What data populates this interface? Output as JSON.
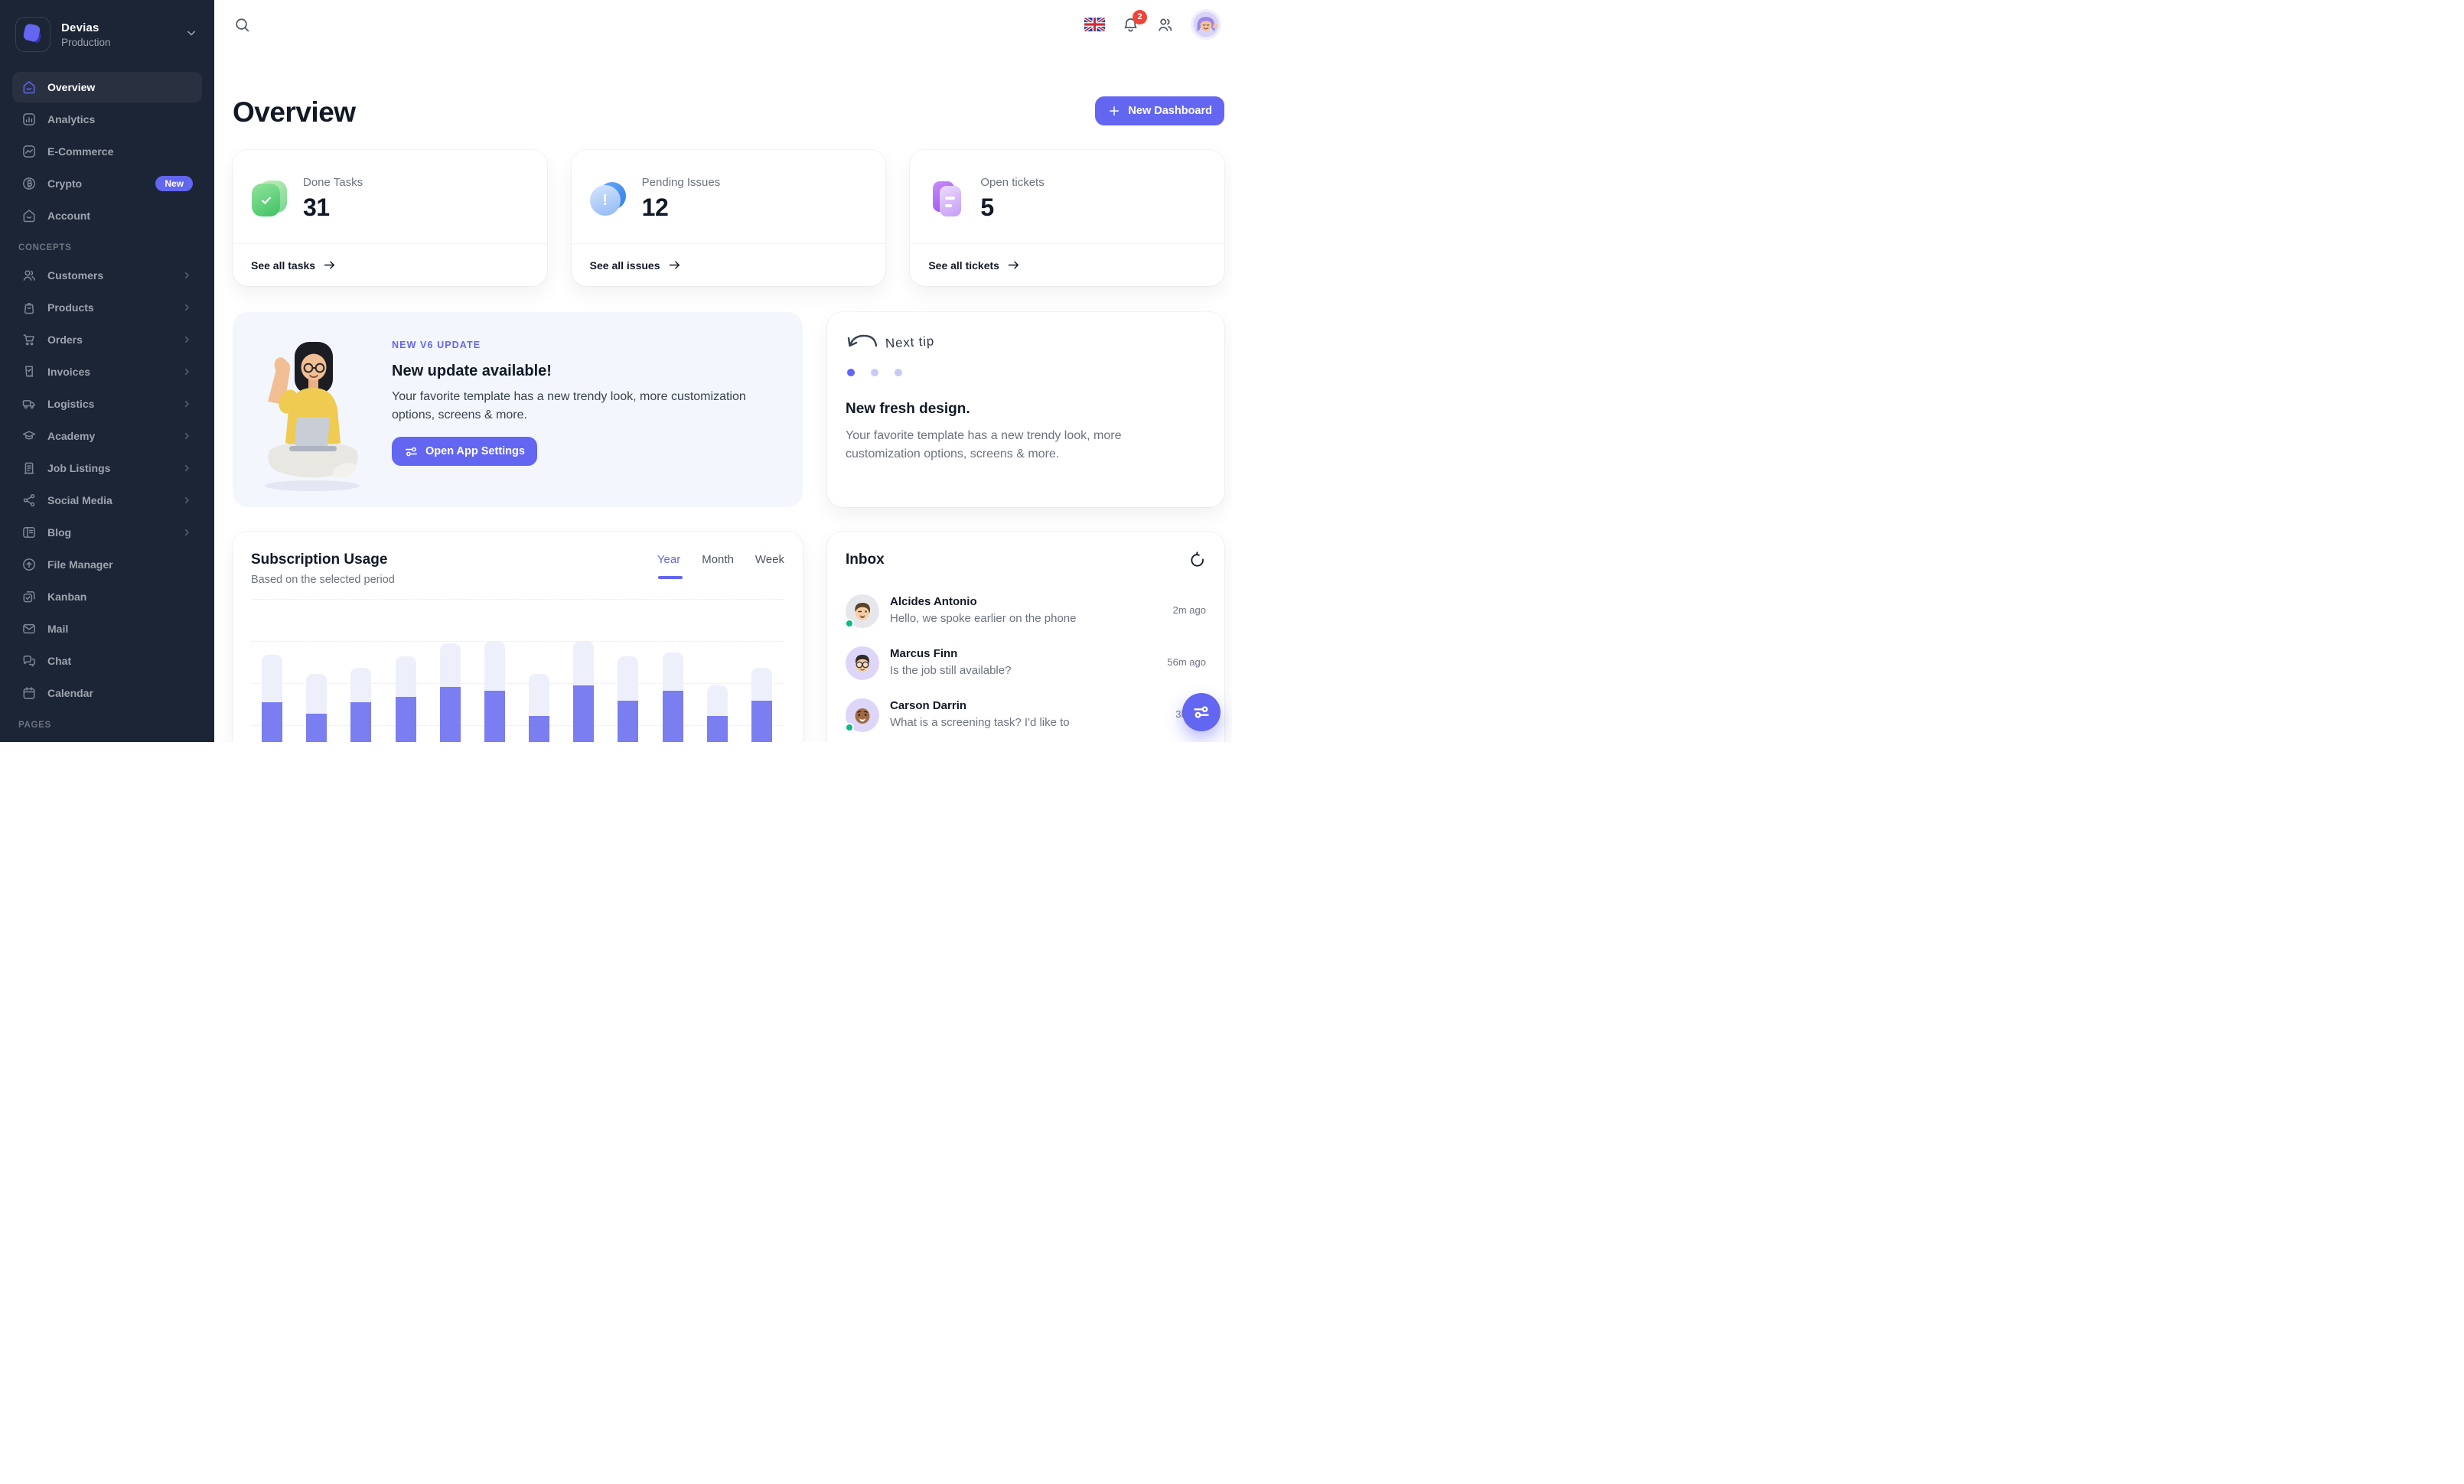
{
  "theme": {
    "primary": "#6366F1",
    "sidebar_bg": "#1C2536",
    "banner_bg": "#F3F6FD",
    "bar_fill": "#7A7EF0",
    "bar_track": "#EDF0FB",
    "notification_red": "#F04438",
    "online_green": "#10B981"
  },
  "sidebar": {
    "workspace": {
      "title": "Devias",
      "subtitle": "Production"
    },
    "main_items": [
      {
        "label": "Overview"
      },
      {
        "label": "Analytics"
      },
      {
        "label": "E-Commerce"
      },
      {
        "label": "Crypto",
        "badge": "New"
      },
      {
        "label": "Account"
      }
    ],
    "concepts_label": "CONCEPTS",
    "concept_items": [
      {
        "label": "Customers"
      },
      {
        "label": "Products"
      },
      {
        "label": "Orders"
      },
      {
        "label": "Invoices"
      },
      {
        "label": "Logistics"
      },
      {
        "label": "Academy"
      },
      {
        "label": "Job Listings"
      },
      {
        "label": "Social Media"
      },
      {
        "label": "Blog"
      },
      {
        "label": "File Manager"
      },
      {
        "label": "Kanban"
      },
      {
        "label": "Mail"
      },
      {
        "label": "Chat"
      },
      {
        "label": "Calendar"
      }
    ],
    "pages_label": "PAGES"
  },
  "topbar": {
    "notification_count": "2"
  },
  "header": {
    "title": "Overview",
    "new_dashboard_label": "New Dashboard"
  },
  "stats": [
    {
      "label": "Done Tasks",
      "value": "31",
      "link_label": "See all tasks"
    },
    {
      "label": "Pending Issues",
      "value": "12",
      "link_label": "See all issues"
    },
    {
      "label": "Open tickets",
      "value": "5",
      "link_label": "See all tickets"
    }
  ],
  "banner": {
    "eyebrow": "NEW V6 UPDATE",
    "title": "New update available!",
    "body": "Your favorite template has a new trendy look, more customization options, screens & more.",
    "button_label": "Open App Settings"
  },
  "tip": {
    "handwritten": "Next tip",
    "title": "New fresh design.",
    "body": "Your favorite template has a new trendy look, more customization options, screens & more."
  },
  "subscription": {
    "title": "Subscription Usage",
    "subtitle": "Based on the selected period",
    "tabs": [
      "Year",
      "Month",
      "Week"
    ],
    "active_tab": "Year"
  },
  "chart_data": {
    "type": "bar",
    "title": "Subscription Usage",
    "subtitle": "Based on the selected period",
    "active_period": "Year",
    "periods": [
      "Year",
      "Month",
      "Week"
    ],
    "grid": "dotted-horizontal",
    "legend_position": "none",
    "x_labels_visible": false,
    "baseline_clipped_by_viewport": true,
    "value_scale": "percent of tallest visible bar (axis labels not visible)",
    "categories": [
      "1",
      "2",
      "3",
      "4",
      "5",
      "6",
      "7",
      "8",
      "9",
      "10",
      "11",
      "12"
    ],
    "series": [
      {
        "name": "capacity",
        "color": "#EDF0FB",
        "values": [
          93,
          83,
          86,
          92,
          99,
          100,
          83,
          100,
          92,
          94,
          77,
          86
        ]
      },
      {
        "name": "usage",
        "color": "#7A7EF0",
        "values": [
          68,
          62,
          68,
          71,
          76,
          74,
          61,
          77,
          69,
          74,
          61,
          69
        ]
      }
    ]
  },
  "inbox": {
    "title": "Inbox",
    "messages": [
      {
        "name": "Alcides Antonio",
        "message": "Hello, we spoke earlier on the phone",
        "time": "2m ago",
        "online": true
      },
      {
        "name": "Marcus Finn",
        "message": "Is the job still available?",
        "time": "56m ago",
        "online": false
      },
      {
        "name": "Carson Darrin",
        "message": "What is a screening task? I'd like to",
        "time": "3h ago",
        "online": true
      }
    ]
  }
}
